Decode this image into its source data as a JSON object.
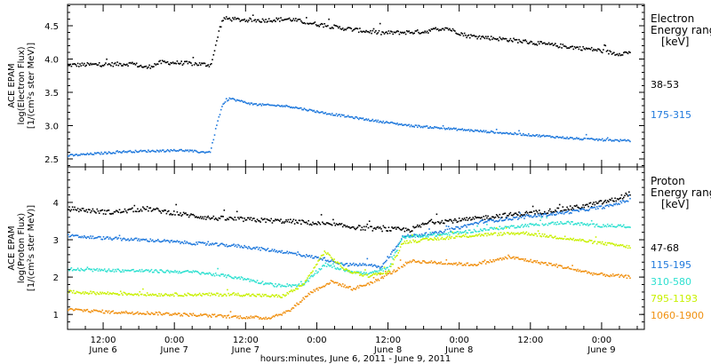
{
  "chart_data": [
    {
      "type": "scatter",
      "panel": "electron",
      "ylabel_lines": [
        "ACE EPAM",
        "log(Electron Flux)",
        "[1/(cm²s ster MeV)]"
      ],
      "legend_title_lines": [
        "Electron",
        "Energy range",
        "[keV]"
      ],
      "xlim": [
        0,
        4.05
      ],
      "ylim": [
        2.38,
        4.82
      ],
      "yticks": [
        2.5,
        3.0,
        3.5,
        4.0,
        4.5
      ],
      "ytick_labels": [
        "2.5",
        "3.0",
        "3.5",
        "4.0",
        "4.5"
      ],
      "series": [
        {
          "name": "38-53",
          "color": "#000000",
          "points": [
            [
              0.0,
              3.92
            ],
            [
              0.3,
              3.93
            ],
            [
              0.45,
              3.94
            ],
            [
              0.55,
              3.88
            ],
            [
              0.65,
              3.96
            ],
            [
              0.8,
              3.95
            ],
            [
              0.95,
              3.93
            ],
            [
              1.0,
              3.92
            ],
            [
              1.03,
              4.15
            ],
            [
              1.06,
              4.45
            ],
            [
              1.09,
              4.62
            ],
            [
              1.2,
              4.6
            ],
            [
              1.35,
              4.59
            ],
            [
              1.55,
              4.61
            ],
            [
              1.7,
              4.55
            ],
            [
              1.9,
              4.48
            ],
            [
              2.2,
              4.4
            ],
            [
              2.5,
              4.42
            ],
            [
              2.65,
              4.48
            ],
            [
              2.8,
              4.36
            ],
            [
              3.1,
              4.3
            ],
            [
              3.4,
              4.22
            ],
            [
              3.7,
              4.15
            ],
            [
              3.85,
              4.09
            ],
            [
              3.95,
              4.11
            ]
          ],
          "noise": 0.03
        },
        {
          "name": "175-315",
          "color": "#1e78dc",
          "points": [
            [
              0.0,
              2.56
            ],
            [
              0.2,
              2.59
            ],
            [
              0.4,
              2.62
            ],
            [
              0.6,
              2.63
            ],
            [
              0.8,
              2.64
            ],
            [
              0.95,
              2.61
            ],
            [
              1.0,
              2.62
            ],
            [
              1.04,
              3.0
            ],
            [
              1.08,
              3.3
            ],
            [
              1.13,
              3.42
            ],
            [
              1.3,
              3.33
            ],
            [
              1.55,
              3.3
            ],
            [
              1.8,
              3.2
            ],
            [
              2.1,
              3.1
            ],
            [
              2.4,
              3.01
            ],
            [
              2.7,
              2.96
            ],
            [
              3.0,
              2.91
            ],
            [
              3.3,
              2.86
            ],
            [
              3.6,
              2.81
            ],
            [
              3.95,
              2.78
            ]
          ],
          "noise": 0.015
        }
      ]
    },
    {
      "type": "scatter",
      "panel": "proton",
      "ylabel_lines": [
        "ACE EPAM",
        "log(Proton Flux)",
        "[1/(cm²s ster MeV)]"
      ],
      "legend_title_lines": [
        "Proton",
        "Energy range",
        "[keV]"
      ],
      "xlim": [
        0,
        4.05
      ],
      "ylim": [
        0.6,
        4.95
      ],
      "yticks": [
        1,
        2,
        3,
        4
      ],
      "ytick_labels": [
        "1",
        "2",
        "3",
        "4"
      ],
      "series": [
        {
          "name": "47-68",
          "color": "#000000",
          "points": [
            [
              0.0,
              3.85
            ],
            [
              0.3,
              3.75
            ],
            [
              0.55,
              3.85
            ],
            [
              0.8,
              3.7
            ],
            [
              1.0,
              3.6
            ],
            [
              1.3,
              3.55
            ],
            [
              1.6,
              3.5
            ],
            [
              1.9,
              3.4
            ],
            [
              2.1,
              3.32
            ],
            [
              2.4,
              3.28
            ],
            [
              2.55,
              3.5
            ],
            [
              2.8,
              3.55
            ],
            [
              3.0,
              3.65
            ],
            [
              3.3,
              3.75
            ],
            [
              3.6,
              3.9
            ],
            [
              3.85,
              4.1
            ],
            [
              3.95,
              4.28
            ]
          ],
          "noise": 0.06
        },
        {
          "name": "115-195",
          "color": "#1e78dc",
          "points": [
            [
              0.0,
              3.12
            ],
            [
              0.3,
              3.05
            ],
            [
              0.6,
              3.0
            ],
            [
              0.9,
              2.92
            ],
            [
              1.2,
              2.85
            ],
            [
              1.5,
              2.7
            ],
            [
              1.8,
              2.5
            ],
            [
              1.95,
              2.35
            ],
            [
              2.1,
              2.35
            ],
            [
              2.2,
              2.28
            ],
            [
              2.35,
              3.1
            ],
            [
              2.6,
              3.2
            ],
            [
              2.9,
              3.5
            ],
            [
              3.2,
              3.62
            ],
            [
              3.5,
              3.75
            ],
            [
              3.8,
              3.92
            ],
            [
              3.95,
              4.1
            ]
          ],
          "noise": 0.04
        },
        {
          "name": "310-580",
          "color": "#2ee0d0",
          "points": [
            [
              0.0,
              2.22
            ],
            [
              0.3,
              2.2
            ],
            [
              0.6,
              2.18
            ],
            [
              0.9,
              2.15
            ],
            [
              1.2,
              2.0
            ],
            [
              1.45,
              1.8
            ],
            [
              1.65,
              1.8
            ],
            [
              1.8,
              2.35
            ],
            [
              1.95,
              2.2
            ],
            [
              2.1,
              2.1
            ],
            [
              2.25,
              2.25
            ],
            [
              2.35,
              3.1
            ],
            [
              2.6,
              3.15
            ],
            [
              2.9,
              3.28
            ],
            [
              3.2,
              3.4
            ],
            [
              3.5,
              3.48
            ],
            [
              3.7,
              3.4
            ],
            [
              3.95,
              3.38
            ]
          ],
          "noise": 0.04
        },
        {
          "name": "795-1193",
          "color": "#c8f000",
          "points": [
            [
              0.0,
              1.62
            ],
            [
              0.3,
              1.58
            ],
            [
              0.6,
              1.55
            ],
            [
              0.9,
              1.55
            ],
            [
              1.2,
              1.55
            ],
            [
              1.5,
              1.5
            ],
            [
              1.65,
              1.8
            ],
            [
              1.8,
              2.7
            ],
            [
              1.95,
              2.2
            ],
            [
              2.1,
              2.05
            ],
            [
              2.25,
              2.15
            ],
            [
              2.35,
              2.95
            ],
            [
              2.6,
              3.05
            ],
            [
              2.9,
              3.15
            ],
            [
              3.2,
              3.2
            ],
            [
              3.5,
              3.05
            ],
            [
              3.8,
              2.9
            ],
            [
              3.95,
              2.82
            ]
          ],
          "noise": 0.04
        },
        {
          "name": "1060-1900",
          "color": "#f09010",
          "points": [
            [
              0.0,
              1.15
            ],
            [
              0.3,
              1.08
            ],
            [
              0.6,
              1.05
            ],
            [
              0.9,
              1.0
            ],
            [
              1.2,
              0.95
            ],
            [
              1.4,
              0.92
            ],
            [
              1.55,
              1.1
            ],
            [
              1.7,
              1.6
            ],
            [
              1.85,
              1.9
            ],
            [
              2.0,
              1.7
            ],
            [
              2.15,
              1.9
            ],
            [
              2.3,
              2.2
            ],
            [
              2.4,
              2.45
            ],
            [
              2.6,
              2.4
            ],
            [
              2.85,
              2.35
            ],
            [
              3.1,
              2.55
            ],
            [
              3.4,
              2.35
            ],
            [
              3.7,
              2.1
            ],
            [
              3.95,
              2.02
            ]
          ],
          "noise": 0.04
        }
      ]
    }
  ],
  "x_axis": {
    "tick_values": [
      0.25,
      0.75,
      1.25,
      1.75,
      2.25,
      2.75,
      3.25,
      3.75
    ],
    "time_labels": [
      "12:00",
      "0:00",
      "12:00",
      "0:00",
      "12:00",
      "0:00",
      "12:00",
      "0:00"
    ],
    "day_labels": [
      "June 6",
      "June 7",
      "June 7",
      "June 8",
      "June 8",
      "June 9"
    ],
    "day_label_positions": [
      0.25,
      0.75,
      1.25,
      2.25,
      2.75,
      3.75
    ],
    "xlabel": "hours:minutes, June  6, 2011 - June  9, 2011"
  }
}
